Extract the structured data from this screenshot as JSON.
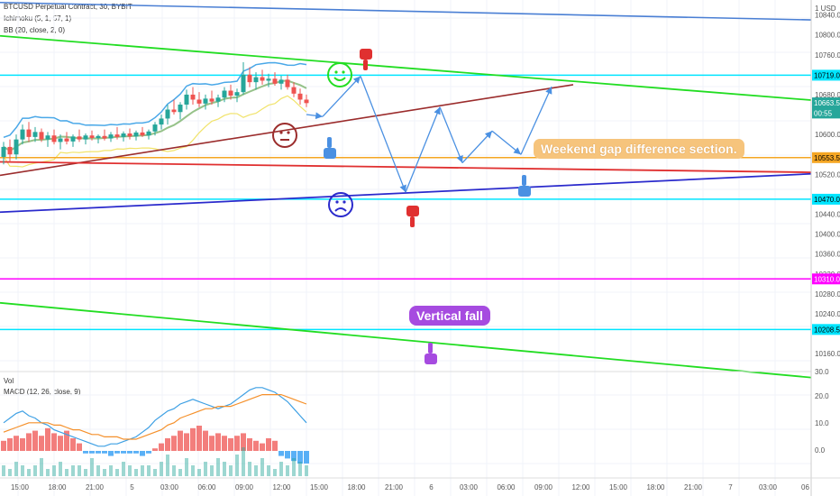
{
  "header": {
    "symbol_line": "BTCUSD Perpetual Contract, 30, BYBIT",
    "indicator_1": "Ichimoku (5, 1, 57, 1)",
    "indicator_2": "BB (20, close, 2, 0)",
    "vol_label": "Vol",
    "macd_label": "MACD (12, 26, close, 9)"
  },
  "chart_data": {
    "type": "candlestick",
    "title": "BTCUSD Perpetual Contract, 30, BYBIT",
    "price_axis": {
      "unit_label": "1 USD",
      "ticks": [
        "10840.0",
        "10800.0",
        "10760.0",
        "10680.0",
        "10600.0",
        "10520.0",
        "10440.0",
        "10400.0",
        "10360.0",
        "10320.0",
        "10280.0",
        "10240.0",
        "10160.0",
        "30.0"
      ],
      "price_range": [
        10124,
        10870
      ]
    },
    "macd_axis": {
      "ticks": [
        "20.0",
        "10.0",
        "0.0"
      ]
    },
    "time_axis": {
      "ticks": [
        "15:00",
        "18:00",
        "21:00",
        "5",
        "03:00",
        "06:00",
        "09:00",
        "12:00",
        "15:00",
        "18:00",
        "21:00",
        "6",
        "03:00",
        "06:00",
        "09:00",
        "12:00",
        "15:00",
        "18:00",
        "21:00",
        "7",
        "03:00",
        "06"
      ]
    },
    "price_tags": [
      {
        "label": "10719.0",
        "price": 10719.0,
        "color": "#00e5ff"
      },
      {
        "label": "10663.5",
        "price": 10663.5,
        "color": "#26a69a"
      },
      {
        "label": "00:55",
        "price": 10643,
        "color": "#26a69a"
      },
      {
        "label": "10553.5",
        "price": 10553.5,
        "color": "#f5a623"
      },
      {
        "label": "10470.0",
        "price": 10470.0,
        "color": "#00e5ff"
      },
      {
        "label": "10310.0",
        "price": 10310.0,
        "color": "#ff00ff"
      },
      {
        "label": "10208.5",
        "price": 10208.5,
        "color": "#00e5ff"
      }
    ],
    "horizontal_lines": [
      {
        "price": 10719.0,
        "color": "#00e5ff"
      },
      {
        "price": 10553.5,
        "color": "#f5a623"
      },
      {
        "price": 10470.0,
        "color": "#00e5ff"
      },
      {
        "price": 10310.0,
        "color": "#ff00ff"
      },
      {
        "price": 10208.5,
        "color": "#00e5ff"
      }
    ],
    "candles": [
      {
        "o": 10555,
        "h": 10585,
        "l": 10540,
        "c": 10575
      },
      {
        "o": 10575,
        "h": 10590,
        "l": 10545,
        "c": 10560
      },
      {
        "o": 10560,
        "h": 10600,
        "l": 10550,
        "c": 10590
      },
      {
        "o": 10590,
        "h": 10620,
        "l": 10580,
        "c": 10610
      },
      {
        "o": 10610,
        "h": 10625,
        "l": 10585,
        "c": 10595
      },
      {
        "o": 10595,
        "h": 10615,
        "l": 10585,
        "c": 10605
      },
      {
        "o": 10605,
        "h": 10612,
        "l": 10585,
        "c": 10590
      },
      {
        "o": 10590,
        "h": 10605,
        "l": 10575,
        "c": 10598
      },
      {
        "o": 10598,
        "h": 10610,
        "l": 10580,
        "c": 10585
      },
      {
        "o": 10585,
        "h": 10600,
        "l": 10570,
        "c": 10592
      },
      {
        "o": 10592,
        "h": 10605,
        "l": 10580,
        "c": 10586
      },
      {
        "o": 10586,
        "h": 10600,
        "l": 10575,
        "c": 10596
      },
      {
        "o": 10596,
        "h": 10610,
        "l": 10585,
        "c": 10590
      },
      {
        "o": 10590,
        "h": 10602,
        "l": 10580,
        "c": 10598
      },
      {
        "o": 10598,
        "h": 10608,
        "l": 10588,
        "c": 10593
      },
      {
        "o": 10593,
        "h": 10600,
        "l": 10582,
        "c": 10597
      },
      {
        "o": 10597,
        "h": 10610,
        "l": 10588,
        "c": 10592
      },
      {
        "o": 10592,
        "h": 10605,
        "l": 10585,
        "c": 10600
      },
      {
        "o": 10600,
        "h": 10615,
        "l": 10590,
        "c": 10595
      },
      {
        "o": 10595,
        "h": 10606,
        "l": 10586,
        "c": 10602
      },
      {
        "o": 10602,
        "h": 10612,
        "l": 10590,
        "c": 10596
      },
      {
        "o": 10596,
        "h": 10608,
        "l": 10588,
        "c": 10604
      },
      {
        "o": 10604,
        "h": 10615,
        "l": 10595,
        "c": 10598
      },
      {
        "o": 10598,
        "h": 10610,
        "l": 10590,
        "c": 10606
      },
      {
        "o": 10606,
        "h": 10625,
        "l": 10598,
        "c": 10620
      },
      {
        "o": 10620,
        "h": 10640,
        "l": 10610,
        "c": 10632
      },
      {
        "o": 10632,
        "h": 10660,
        "l": 10620,
        "c": 10650
      },
      {
        "o": 10650,
        "h": 10670,
        "l": 10640,
        "c": 10645
      },
      {
        "o": 10645,
        "h": 10665,
        "l": 10630,
        "c": 10660
      },
      {
        "o": 10660,
        "h": 10690,
        "l": 10650,
        "c": 10680
      },
      {
        "o": 10680,
        "h": 10695,
        "l": 10660,
        "c": 10670
      },
      {
        "o": 10670,
        "h": 10685,
        "l": 10655,
        "c": 10662
      },
      {
        "o": 10662,
        "h": 10680,
        "l": 10650,
        "c": 10672
      },
      {
        "o": 10672,
        "h": 10688,
        "l": 10660,
        "c": 10666
      },
      {
        "o": 10666,
        "h": 10680,
        "l": 10655,
        "c": 10674
      },
      {
        "o": 10674,
        "h": 10695,
        "l": 10665,
        "c": 10688
      },
      {
        "o": 10688,
        "h": 10700,
        "l": 10670,
        "c": 10678
      },
      {
        "o": 10678,
        "h": 10692,
        "l": 10665,
        "c": 10685
      },
      {
        "o": 10685,
        "h": 10745,
        "l": 10680,
        "c": 10720
      },
      {
        "o": 10720,
        "h": 10735,
        "l": 10695,
        "c": 10705
      },
      {
        "o": 10705,
        "h": 10725,
        "l": 10690,
        "c": 10715
      },
      {
        "o": 10715,
        "h": 10730,
        "l": 10700,
        "c": 10708
      },
      {
        "o": 10708,
        "h": 10722,
        "l": 10695,
        "c": 10712
      },
      {
        "o": 10712,
        "h": 10725,
        "l": 10698,
        "c": 10702
      },
      {
        "o": 10702,
        "h": 10718,
        "l": 10690,
        "c": 10710
      },
      {
        "o": 10710,
        "h": 10720,
        "l": 10690,
        "c": 10695
      },
      {
        "o": 10695,
        "h": 10705,
        "l": 10675,
        "c": 10682
      },
      {
        "o": 10682,
        "h": 10692,
        "l": 10660,
        "c": 10670
      },
      {
        "o": 10670,
        "h": 10680,
        "l": 10655,
        "c": 10663
      }
    ],
    "macd_hist": [
      4,
      5,
      6,
      5,
      7,
      8,
      6,
      9,
      7,
      6,
      8,
      5,
      3,
      -1,
      -1,
      -1,
      -1,
      -2,
      -1,
      -1,
      -1,
      -1,
      -2,
      -1,
      1,
      3,
      5,
      6,
      8,
      7,
      9,
      10,
      8,
      6,
      7,
      6,
      5,
      6,
      7,
      5,
      4,
      3,
      5,
      4,
      -2,
      -3,
      -4,
      -5,
      -5
    ],
    "vol": [
      3,
      2,
      4,
      3,
      2,
      3,
      5,
      2,
      3,
      4,
      2,
      3,
      3,
      2,
      5,
      3,
      2,
      3,
      2,
      4,
      3,
      2,
      3,
      3,
      2,
      4,
      6,
      3,
      2,
      5,
      3,
      2,
      4,
      3,
      5,
      4,
      3,
      6,
      8,
      4,
      3,
      5,
      3,
      2,
      4,
      3,
      5,
      4,
      3
    ],
    "macd_line": [
      12,
      14,
      16,
      17,
      15,
      14,
      12,
      11,
      9,
      8,
      7,
      6,
      5,
      4,
      3,
      2,
      2,
      3,
      3,
      4,
      5,
      6,
      8,
      10,
      13,
      15,
      17,
      18,
      20,
      21,
      22,
      21,
      20,
      19,
      18,
      19,
      20,
      22,
      24,
      26,
      27,
      27,
      26,
      25,
      23,
      21,
      18,
      15,
      12
    ],
    "signal_line": [
      8,
      9,
      10,
      11,
      12,
      12,
      12,
      12,
      11,
      11,
      10,
      9,
      9,
      8,
      7,
      7,
      6,
      6,
      6,
      5,
      5,
      5,
      6,
      7,
      8,
      9,
      11,
      12,
      14,
      15,
      16,
      17,
      18,
      18,
      19,
      19,
      19,
      20,
      21,
      22,
      23,
      24,
      24,
      24,
      24,
      23,
      22,
      21,
      20
    ]
  },
  "annotations": {
    "weekend_label": "Weekend gap difference section.",
    "vertical_fall_label": "Vertical fall"
  },
  "colors": {
    "green_line": "#22dd22",
    "blue_line": "#4a7fd4",
    "brown_line": "#9b2c2c",
    "red_line": "#e03030",
    "navy_line": "#2a2acc",
    "arrow": "#4a90e2",
    "up": "#26a69a",
    "down": "#ef5350",
    "bb": "#4aa8e8"
  }
}
